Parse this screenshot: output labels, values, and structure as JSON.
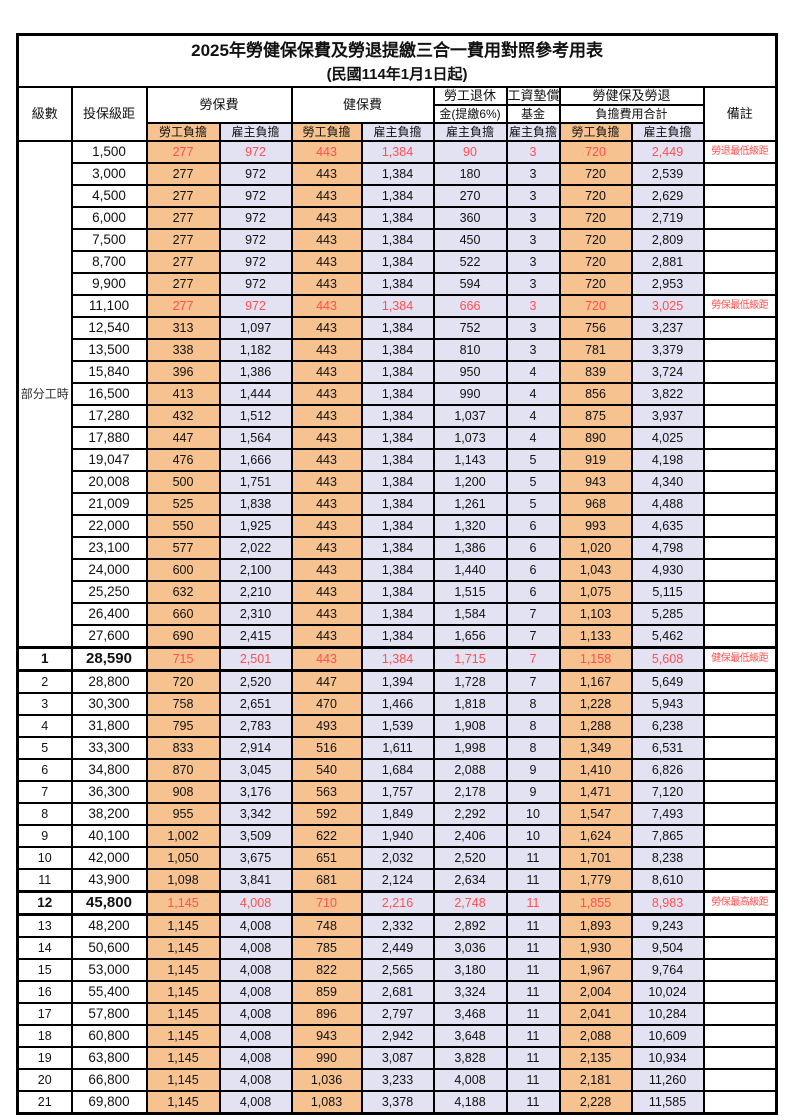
{
  "page": {
    "title": "2025年勞健保保費及勞退提繳三合一費用對照參考用表",
    "subtitle": "(民國114年1月1日起)"
  },
  "colors": {
    "employee_fill": "#f6c28f",
    "employer_fill": "#e2e2f3",
    "highlight_red": "#ff5050",
    "border": "#000000"
  },
  "table": {
    "headers": {
      "level": "級數",
      "bracket": "投保級距",
      "labor_group": "勞保費",
      "health_group": "健保費",
      "pension_line1": "勞工退休",
      "pension_line2": "金(提繳6%)",
      "wage_fund_line1": "工資墊償",
      "wage_fund_line2": "基金",
      "total_line1": "勞健保及勞退",
      "total_line2": "負擔費用合計",
      "remark": "備註",
      "sub_employee": "勞工負擔",
      "sub_employer": "雇主負擔"
    },
    "part_time_label": "部分工時",
    "part_time_rowspan": 23,
    "value_col_fills": [
      "emp",
      "er",
      "emp",
      "er",
      "er",
      "er",
      "emp",
      "er"
    ],
    "rows": [
      {
        "level": "",
        "bracket": "1,500",
        "values": [
          "277",
          "972",
          "443",
          "1,384",
          "90",
          "3",
          "720",
          "2,449"
        ],
        "remark": "勞退最低級距",
        "red": true
      },
      {
        "level": "",
        "bracket": "3,000",
        "values": [
          "277",
          "972",
          "443",
          "1,384",
          "180",
          "3",
          "720",
          "2,539"
        ],
        "remark": ""
      },
      {
        "level": "",
        "bracket": "4,500",
        "values": [
          "277",
          "972",
          "443",
          "1,384",
          "270",
          "3",
          "720",
          "2,629"
        ],
        "remark": ""
      },
      {
        "level": "",
        "bracket": "6,000",
        "values": [
          "277",
          "972",
          "443",
          "1,384",
          "360",
          "3",
          "720",
          "2,719"
        ],
        "remark": ""
      },
      {
        "level": "",
        "bracket": "7,500",
        "values": [
          "277",
          "972",
          "443",
          "1,384",
          "450",
          "3",
          "720",
          "2,809"
        ],
        "remark": ""
      },
      {
        "level": "",
        "bracket": "8,700",
        "values": [
          "277",
          "972",
          "443",
          "1,384",
          "522",
          "3",
          "720",
          "2,881"
        ],
        "remark": ""
      },
      {
        "level": "",
        "bracket": "9,900",
        "values": [
          "277",
          "972",
          "443",
          "1,384",
          "594",
          "3",
          "720",
          "2,953"
        ],
        "remark": ""
      },
      {
        "level": "",
        "bracket": "11,100",
        "values": [
          "277",
          "972",
          "443",
          "1,384",
          "666",
          "3",
          "720",
          "3,025"
        ],
        "remark": "勞保最低級距",
        "red": true
      },
      {
        "level": "",
        "bracket": "12,540",
        "values": [
          "313",
          "1,097",
          "443",
          "1,384",
          "752",
          "3",
          "756",
          "3,237"
        ],
        "remark": ""
      },
      {
        "level": "",
        "bracket": "13,500",
        "values": [
          "338",
          "1,182",
          "443",
          "1,384",
          "810",
          "3",
          "781",
          "3,379"
        ],
        "remark": ""
      },
      {
        "level": "",
        "bracket": "15,840",
        "values": [
          "396",
          "1,386",
          "443",
          "1,384",
          "950",
          "4",
          "839",
          "3,724"
        ],
        "remark": ""
      },
      {
        "level": "",
        "bracket": "16,500",
        "values": [
          "413",
          "1,444",
          "443",
          "1,384",
          "990",
          "4",
          "856",
          "3,822"
        ],
        "remark": ""
      },
      {
        "level": "",
        "bracket": "17,280",
        "values": [
          "432",
          "1,512",
          "443",
          "1,384",
          "1,037",
          "4",
          "875",
          "3,937"
        ],
        "remark": ""
      },
      {
        "level": "",
        "bracket": "17,880",
        "values": [
          "447",
          "1,564",
          "443",
          "1,384",
          "1,073",
          "4",
          "890",
          "4,025"
        ],
        "remark": ""
      },
      {
        "level": "",
        "bracket": "19,047",
        "values": [
          "476",
          "1,666",
          "443",
          "1,384",
          "1,143",
          "5",
          "919",
          "4,198"
        ],
        "remark": ""
      },
      {
        "level": "",
        "bracket": "20,008",
        "values": [
          "500",
          "1,751",
          "443",
          "1,384",
          "1,200",
          "5",
          "943",
          "4,340"
        ],
        "remark": ""
      },
      {
        "level": "",
        "bracket": "21,009",
        "values": [
          "525",
          "1,838",
          "443",
          "1,384",
          "1,261",
          "5",
          "968",
          "4,488"
        ],
        "remark": ""
      },
      {
        "level": "",
        "bracket": "22,000",
        "values": [
          "550",
          "1,925",
          "443",
          "1,384",
          "1,320",
          "6",
          "993",
          "4,635"
        ],
        "remark": ""
      },
      {
        "level": "",
        "bracket": "23,100",
        "values": [
          "577",
          "2,022",
          "443",
          "1,384",
          "1,386",
          "6",
          "1,020",
          "4,798"
        ],
        "remark": ""
      },
      {
        "level": "",
        "bracket": "24,000",
        "values": [
          "600",
          "2,100",
          "443",
          "1,384",
          "1,440",
          "6",
          "1,043",
          "4,930"
        ],
        "remark": ""
      },
      {
        "level": "",
        "bracket": "25,250",
        "values": [
          "632",
          "2,210",
          "443",
          "1,384",
          "1,515",
          "6",
          "1,075",
          "5,115"
        ],
        "remark": ""
      },
      {
        "level": "",
        "bracket": "26,400",
        "values": [
          "660",
          "2,310",
          "443",
          "1,384",
          "1,584",
          "7",
          "1,103",
          "5,285"
        ],
        "remark": ""
      },
      {
        "level": "",
        "bracket": "27,600",
        "values": [
          "690",
          "2,415",
          "443",
          "1,384",
          "1,656",
          "7",
          "1,133",
          "5,462"
        ],
        "remark": ""
      },
      {
        "level": "1",
        "bracket": "28,590",
        "values": [
          "715",
          "2,501",
          "443",
          "1,384",
          "1,715",
          "7",
          "1,158",
          "5,608"
        ],
        "remark": "健保最低級距",
        "red": true,
        "special": true
      },
      {
        "level": "2",
        "bracket": "28,800",
        "values": [
          "720",
          "2,520",
          "447",
          "1,394",
          "1,728",
          "7",
          "1,167",
          "5,649"
        ],
        "remark": ""
      },
      {
        "level": "3",
        "bracket": "30,300",
        "values": [
          "758",
          "2,651",
          "470",
          "1,466",
          "1,818",
          "8",
          "1,228",
          "5,943"
        ],
        "remark": ""
      },
      {
        "level": "4",
        "bracket": "31,800",
        "values": [
          "795",
          "2,783",
          "493",
          "1,539",
          "1,908",
          "8",
          "1,288",
          "6,238"
        ],
        "remark": ""
      },
      {
        "level": "5",
        "bracket": "33,300",
        "values": [
          "833",
          "2,914",
          "516",
          "1,611",
          "1,998",
          "8",
          "1,349",
          "6,531"
        ],
        "remark": ""
      },
      {
        "level": "6",
        "bracket": "34,800",
        "values": [
          "870",
          "3,045",
          "540",
          "1,684",
          "2,088",
          "9",
          "1,410",
          "6,826"
        ],
        "remark": ""
      },
      {
        "level": "7",
        "bracket": "36,300",
        "values": [
          "908",
          "3,176",
          "563",
          "1,757",
          "2,178",
          "9",
          "1,471",
          "7,120"
        ],
        "remark": ""
      },
      {
        "level": "8",
        "bracket": "38,200",
        "values": [
          "955",
          "3,342",
          "592",
          "1,849",
          "2,292",
          "10",
          "1,547",
          "7,493"
        ],
        "remark": ""
      },
      {
        "level": "9",
        "bracket": "40,100",
        "values": [
          "1,002",
          "3,509",
          "622",
          "1,940",
          "2,406",
          "10",
          "1,624",
          "7,865"
        ],
        "remark": ""
      },
      {
        "level": "10",
        "bracket": "42,000",
        "values": [
          "1,050",
          "3,675",
          "651",
          "2,032",
          "2,520",
          "11",
          "1,701",
          "8,238"
        ],
        "remark": ""
      },
      {
        "level": "11",
        "bracket": "43,900",
        "values": [
          "1,098",
          "3,841",
          "681",
          "2,124",
          "2,634",
          "11",
          "1,779",
          "8,610"
        ],
        "remark": ""
      },
      {
        "level": "12",
        "bracket": "45,800",
        "values": [
          "1,145",
          "4,008",
          "710",
          "2,216",
          "2,748",
          "11",
          "1,855",
          "8,983"
        ],
        "remark": "勞保最高級距",
        "red": true,
        "special": true
      },
      {
        "level": "13",
        "bracket": "48,200",
        "values": [
          "1,145",
          "4,008",
          "748",
          "2,332",
          "2,892",
          "11",
          "1,893",
          "9,243"
        ],
        "remark": ""
      },
      {
        "level": "14",
        "bracket": "50,600",
        "values": [
          "1,145",
          "4,008",
          "785",
          "2,449",
          "3,036",
          "11",
          "1,930",
          "9,504"
        ],
        "remark": ""
      },
      {
        "level": "15",
        "bracket": "53,000",
        "values": [
          "1,145",
          "4,008",
          "822",
          "2,565",
          "3,180",
          "11",
          "1,967",
          "9,764"
        ],
        "remark": ""
      },
      {
        "level": "16",
        "bracket": "55,400",
        "values": [
          "1,145",
          "4,008",
          "859",
          "2,681",
          "3,324",
          "11",
          "2,004",
          "10,024"
        ],
        "remark": ""
      },
      {
        "level": "17",
        "bracket": "57,800",
        "values": [
          "1,145",
          "4,008",
          "896",
          "2,797",
          "3,468",
          "11",
          "2,041",
          "10,284"
        ],
        "remark": ""
      },
      {
        "level": "18",
        "bracket": "60,800",
        "values": [
          "1,145",
          "4,008",
          "943",
          "2,942",
          "3,648",
          "11",
          "2,088",
          "10,609"
        ],
        "remark": ""
      },
      {
        "level": "19",
        "bracket": "63,800",
        "values": [
          "1,145",
          "4,008",
          "990",
          "3,087",
          "3,828",
          "11",
          "2,135",
          "10,934"
        ],
        "remark": ""
      },
      {
        "level": "20",
        "bracket": "66,800",
        "values": [
          "1,145",
          "4,008",
          "1,036",
          "3,233",
          "4,008",
          "11",
          "2,181",
          "11,260"
        ],
        "remark": ""
      },
      {
        "level": "21",
        "bracket": "69,800",
        "values": [
          "1,145",
          "4,008",
          "1,083",
          "3,378",
          "4,188",
          "11",
          "2,228",
          "11,585"
        ],
        "remark": ""
      }
    ]
  }
}
